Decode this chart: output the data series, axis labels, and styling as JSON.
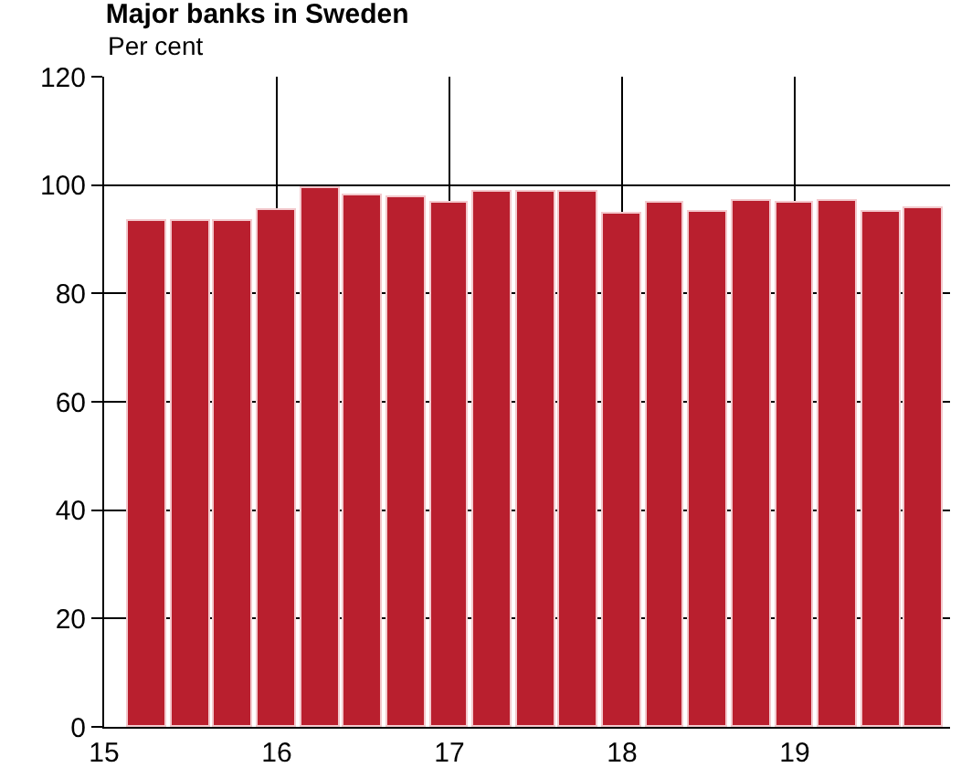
{
  "chart_data": {
    "type": "bar",
    "title": "Major banks in Sweden",
    "ylabel": "Per cent",
    "x": [
      15.25,
      15.5,
      15.75,
      16,
      16.25,
      16.5,
      16.75,
      17,
      17.25,
      17.5,
      17.75,
      18,
      18.25,
      18.5,
      18.75,
      19,
      19.25,
      19.5,
      19.75
    ],
    "series": [
      {
        "color": "#b91f2e",
        "values": [
          93.3,
          93.3,
          93.5,
          95.3,
          99.3,
          98.1,
          97.8,
          96.7,
          98.9,
          98.6,
          98.6,
          94.6,
          96.7,
          95.0,
          97.1,
          96.7,
          97.2,
          95.0,
          95.9
        ]
      }
    ],
    "xlim": [
      15,
      19.9
    ],
    "xticks": [
      15,
      16,
      17,
      18,
      19
    ],
    "ylim": [
      0,
      120
    ],
    "yticks": [
      0,
      20,
      40,
      60,
      80,
      100,
      120
    ],
    "grid": true
  }
}
